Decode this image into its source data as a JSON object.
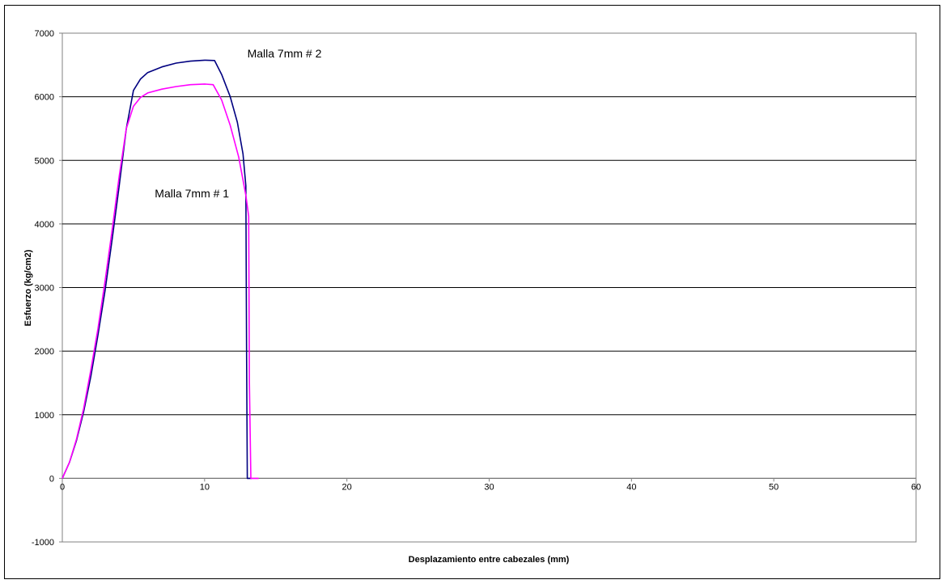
{
  "chart_data": {
    "type": "line",
    "title": "",
    "xlabel": "Desplazamiento entre cabezales (mm)",
    "ylabel": "Esfuerzo (kg/cm2)",
    "xlim": [
      0,
      60
    ],
    "ylim": [
      -1000,
      7000
    ],
    "x_ticks": [
      0,
      10,
      20,
      30,
      40,
      50,
      60
    ],
    "y_ticks": [
      -1000,
      0,
      1000,
      2000,
      3000,
      4000,
      5000,
      6000,
      7000
    ],
    "grid": "horizontal",
    "legend": "none",
    "series": [
      {
        "color": "#000080",
        "x": [
          0,
          0.5,
          1,
          1.5,
          2,
          2.5,
          3,
          3.5,
          4,
          4.5,
          5,
          5.5,
          6,
          7,
          8,
          9,
          10,
          10.7,
          11.2,
          11.8,
          12.3,
          12.7,
          12.9,
          12.95,
          13.0,
          13.3
        ],
        "y": [
          0,
          250,
          600,
          1050,
          1600,
          2250,
          2950,
          3750,
          4600,
          5500,
          6100,
          6280,
          6380,
          6470,
          6530,
          6560,
          6575,
          6570,
          6350,
          6000,
          5600,
          5100,
          4600,
          2000,
          0,
          0
        ]
      },
      {
        "color": "#ff00ff",
        "x": [
          0,
          0.5,
          1,
          1.5,
          2,
          2.5,
          3,
          3.5,
          4,
          4.5,
          5,
          5.5,
          6,
          7,
          8,
          9,
          10,
          10.6,
          11.2,
          11.8,
          12.4,
          12.9,
          13.1,
          13.15,
          13.25,
          13.8
        ],
        "y": [
          0,
          250,
          620,
          1100,
          1700,
          2350,
          3100,
          3900,
          4750,
          5500,
          5850,
          5990,
          6060,
          6120,
          6160,
          6190,
          6200,
          6190,
          5950,
          5550,
          5050,
          4450,
          4120,
          1500,
          0,
          0
        ]
      }
    ],
    "annotations": [
      {
        "text": "Malla 7mm # 2",
        "x": 13,
        "y": 6620
      },
      {
        "text": "Malla 7mm # 1",
        "x": 6.5,
        "y": 4420
      }
    ]
  }
}
